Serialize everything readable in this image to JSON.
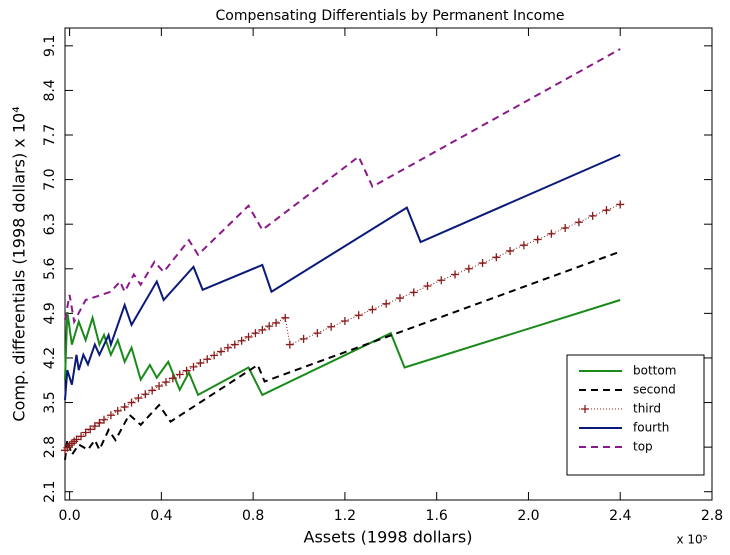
{
  "chart_data": {
    "type": "line",
    "title": "Compensating Differentials by Permanent Income",
    "x_label": "Assets (1998 dollars)",
    "x_multiplier": "x 10⁵",
    "y_label": "Comp. differentials (1998 dollars) x 10⁴",
    "xlim": [
      -0.02,
      2.8
    ],
    "xticks": [
      {
        "value": 0,
        "label": "0.0"
      },
      0.4,
      0.8,
      1.2,
      1.6,
      {
        "value": 2,
        "label": "2.0"
      },
      2.4,
      2.8
    ],
    "ylim": [
      1.97,
      9.38
    ],
    "yticks": [
      2.1,
      2.8,
      3.5,
      4.2,
      4.9,
      5.6,
      6.3,
      {
        "value": 7,
        "label": "7.0"
      },
      7.7,
      8.4,
      9.1
    ],
    "legend": "lower right",
    "series": [
      {
        "name": "bottom",
        "color": "#1a8a1a",
        "line_style": "solid",
        "x": [
          -0.02,
          -0.01,
          0.01,
          0.04,
          0.07,
          0.1,
          0.13,
          0.15,
          0.18,
          0.21,
          0.24,
          0.27,
          0.31,
          0.35,
          0.38,
          0.43,
          0.48,
          0.52,
          0.56,
          0.78,
          0.84,
          1.4,
          1.46,
          2.4
        ],
        "values": [
          3.86,
          4.92,
          4.41,
          4.77,
          4.48,
          4.83,
          4.41,
          4.56,
          4.25,
          4.48,
          4.14,
          4.36,
          3.86,
          4.09,
          3.89,
          4.14,
          3.7,
          3.97,
          3.62,
          4.05,
          3.62,
          4.59,
          4.05,
          5.11
        ]
      },
      {
        "name": "second",
        "color": "#000000",
        "line_style": "dashed",
        "x": [
          -0.02,
          -0.01,
          0.01,
          0.04,
          0.08,
          0.11,
          0.13,
          0.17,
          0.2,
          0.26,
          0.31,
          0.39,
          0.44,
          0.82,
          0.85,
          2.4
        ],
        "values": [
          2.6,
          2.91,
          2.68,
          2.84,
          2.76,
          2.91,
          2.76,
          3.07,
          2.91,
          3.31,
          3.15,
          3.46,
          3.2,
          4.09,
          3.83,
          5.87
        ]
      },
      {
        "name": "third",
        "color": "#8b1a1a",
        "line_style": "dotted",
        "marker": "+",
        "x": [
          -0.02,
          -0.01,
          0,
          0.01,
          0.02,
          0.03,
          0.05,
          0.07,
          0.09,
          0.11,
          0.13,
          0.15,
          0.18,
          0.21,
          0.24,
          0.27,
          0.3,
          0.33,
          0.36,
          0.39,
          0.42,
          0.45,
          0.48,
          0.51,
          0.54,
          0.57,
          0.6,
          0.63,
          0.66,
          0.69,
          0.72,
          0.75,
          0.78,
          0.81,
          0.84,
          0.87,
          0.9,
          0.94,
          0.96,
          1.02,
          1.08,
          1.14,
          1.2,
          1.26,
          1.32,
          1.38,
          1.44,
          1.5,
          1.56,
          1.62,
          1.68,
          1.74,
          1.8,
          1.86,
          1.92,
          1.98,
          2.04,
          2.1,
          2.16,
          2.22,
          2.28,
          2.34,
          2.4
        ],
        "values": [
          2.75,
          2.79,
          2.83,
          2.86,
          2.89,
          2.92,
          2.97,
          3.03,
          3.08,
          3.13,
          3.18,
          3.23,
          3.3,
          3.37,
          3.43,
          3.5,
          3.57,
          3.63,
          3.69,
          3.76,
          3.82,
          3.88,
          3.94,
          4.0,
          4.06,
          4.12,
          4.18,
          4.24,
          4.3,
          4.36,
          4.41,
          4.47,
          4.53,
          4.59,
          4.64,
          4.7,
          4.75,
          4.83,
          4.41,
          4.5,
          4.59,
          4.69,
          4.78,
          4.87,
          4.96,
          5.05,
          5.14,
          5.23,
          5.33,
          5.42,
          5.51,
          5.6,
          5.69,
          5.78,
          5.88,
          5.97,
          6.06,
          6.15,
          6.24,
          6.33,
          6.43,
          6.52,
          6.61
        ]
      },
      {
        "name": "fourth",
        "color": "#0a1a7a",
        "line_style": "solid",
        "x": [
          -0.02,
          -0.01,
          0.01,
          0.03,
          0.04,
          0.06,
          0.08,
          0.11,
          0.13,
          0.17,
          0.18,
          0.24,
          0.27,
          0.38,
          0.41,
          0.54,
          0.58,
          0.84,
          0.88,
          1.47,
          1.53,
          2.4
        ],
        "values": [
          3.54,
          4.01,
          3.78,
          4.25,
          4.01,
          4.25,
          4.1,
          4.41,
          4.25,
          4.56,
          4.41,
          5.03,
          4.72,
          5.4,
          5.11,
          5.63,
          5.27,
          5.66,
          5.24,
          6.56,
          6.02,
          7.39
        ]
      },
      {
        "name": "top",
        "color": "#8a1a8a",
        "line_style": "dashed",
        "x": [
          -0.02,
          0.0,
          0.02,
          0.07,
          0.13,
          0.18,
          0.22,
          0.24,
          0.28,
          0.31,
          0.37,
          0.41,
          0.52,
          0.56,
          0.78,
          0.84,
          1.26,
          1.32,
          2.4
        ],
        "values": [
          4.8,
          5.19,
          4.77,
          5.11,
          5.18,
          5.24,
          5.4,
          5.24,
          5.51,
          5.35,
          5.71,
          5.55,
          6.05,
          5.82,
          6.59,
          6.21,
          7.36,
          6.89,
          9.05
        ]
      }
    ]
  }
}
